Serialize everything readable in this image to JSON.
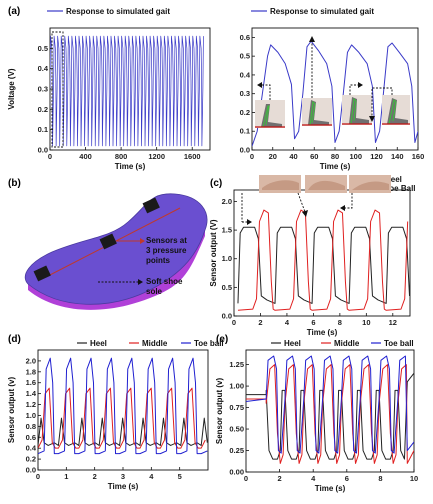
{
  "panel_labels": {
    "a": "(a)",
    "b": "(b)",
    "c": "(c)",
    "d": "(d)",
    "e": "(e)"
  },
  "insole": {
    "sensors_label_lines": [
      "Sensors at",
      "3 pressure",
      "points"
    ],
    "sole_label_lines": [
      "Soft shoe",
      "sole"
    ],
    "colors": {
      "top": "#6a4fd0",
      "side": "#b040d8",
      "sensor": "#1a1a1a",
      "line": "#c0392b"
    }
  },
  "chart_data": [
    {
      "id": "a1",
      "type": "line",
      "xlabel": "Time (s)",
      "ylabel": "Voltage (V)",
      "xlim": [
        0,
        1800
      ],
      "ylim": [
        0,
        0.6
      ],
      "xticks": [
        0,
        400,
        800,
        1200,
        1600
      ],
      "yticks": [
        0.0,
        0.1,
        0.2,
        0.3,
        0.4,
        0.5
      ],
      "series": [
        {
          "name": "Response to simulated gait",
          "color": "#3a3ac8",
          "period": 40,
          "x_start": 0,
          "x_end": 1730,
          "shape": [
            [
              0,
              0.3
            ],
            [
              0.15,
              0.56
            ],
            [
              0.5,
              0.5
            ],
            [
              0.65,
              0.34
            ],
            [
              0.72,
              0.02
            ],
            [
              0.8,
              0.1
            ],
            [
              1,
              0.3
            ]
          ]
        }
      ]
    },
    {
      "id": "a2",
      "type": "line",
      "xlabel": "Time (s)",
      "ylabel": "",
      "xlim": [
        0,
        160
      ],
      "ylim": [
        0,
        0.65
      ],
      "xticks": [
        0,
        20,
        40,
        60,
        80,
        100,
        120,
        140,
        160
      ],
      "yticks": [
        0.0,
        0.1,
        0.2,
        0.3,
        0.4,
        0.5,
        0.6
      ],
      "series": [
        {
          "name": "Response to simulated gait",
          "color": "#3a3ac8",
          "points": [
            [
              0,
              0.02
            ],
            [
              5,
              0.1
            ],
            [
              10,
              0.3
            ],
            [
              15,
              0.5
            ],
            [
              18,
              0.56
            ],
            [
              25,
              0.52
            ],
            [
              32,
              0.46
            ],
            [
              38,
              0.35
            ],
            [
              41,
              0.06
            ],
            [
              45,
              0.1
            ],
            [
              49,
              0.3
            ],
            [
              53,
              0.55
            ],
            [
              57,
              0.58
            ],
            [
              64,
              0.53
            ],
            [
              72,
              0.46
            ],
            [
              77,
              0.34
            ],
            [
              80,
              0.04
            ],
            [
              84,
              0.1
            ],
            [
              88,
              0.3
            ],
            [
              92,
              0.52
            ],
            [
              96,
              0.56
            ],
            [
              103,
              0.52
            ],
            [
              111,
              0.46
            ],
            [
              116,
              0.34
            ],
            [
              119,
              0.04
            ],
            [
              123,
              0.1
            ],
            [
              127,
              0.32
            ],
            [
              131,
              0.55
            ],
            [
              135,
              0.57
            ],
            [
              142,
              0.52
            ],
            [
              150,
              0.46
            ],
            [
              154,
              0.34
            ],
            [
              157,
              0.04
            ],
            [
              160,
              0.1
            ]
          ]
        }
      ]
    },
    {
      "id": "c",
      "type": "line",
      "xlabel": "Time (s)",
      "ylabel": "Sensor output (V)",
      "xlim": [
        0,
        13.3
      ],
      "ylim": [
        0,
        2.2
      ],
      "xticks": [
        0,
        2,
        4,
        6,
        8,
        10,
        12
      ],
      "yticks": [
        0.0,
        0.5,
        1.0,
        1.5,
        2.0
      ],
      "series": [
        {
          "name": "Heel",
          "color": "#222222",
          "period": 2.8,
          "x_start": 0.3,
          "x_end": 13.3,
          "shape": [
            [
              0,
              0.22
            ],
            [
              0.06,
              1.45
            ],
            [
              0.15,
              1.55
            ],
            [
              0.45,
              1.55
            ],
            [
              0.55,
              1.35
            ],
            [
              0.63,
              0.35
            ],
            [
              0.78,
              0.28
            ],
            [
              1,
              0.22
            ]
          ]
        },
        {
          "name": "Toe Ball",
          "color": "#e02020",
          "period": 2.8,
          "x_start": 0.3,
          "x_end": 13.3,
          "shape": [
            [
              0,
              0.1
            ],
            [
              0.4,
              0.12
            ],
            [
              0.5,
              0.3
            ],
            [
              0.58,
              1.65
            ],
            [
              0.7,
              1.85
            ],
            [
              0.82,
              1.8
            ],
            [
              0.9,
              0.6
            ],
            [
              0.95,
              0.12
            ],
            [
              1,
              0.1
            ]
          ]
        }
      ]
    },
    {
      "id": "d",
      "type": "line",
      "xlabel": "Time (s)",
      "ylabel": "Sensor output (v)",
      "xlim": [
        0,
        6
      ],
      "ylim": [
        0,
        2.2
      ],
      "xticks": [
        0,
        1,
        2,
        3,
        4,
        5
      ],
      "yticks": [
        0.0,
        0.2,
        0.4,
        0.6,
        0.8,
        1.0,
        1.2,
        1.4,
        1.6,
        1.8,
        2.0
      ],
      "series": [
        {
          "name": "Heel",
          "color": "#222222",
          "period": 0.72,
          "x_start": 0,
          "x_end": 6,
          "shape": [
            [
              0,
              0.45
            ],
            [
              0.15,
              0.95
            ],
            [
              0.3,
              0.5
            ],
            [
              0.5,
              0.45
            ],
            [
              0.8,
              0.5
            ],
            [
              1,
              0.45
            ]
          ]
        },
        {
          "name": "Middle",
          "color": "#e02020",
          "period": 0.72,
          "x_start": 0,
          "x_end": 6,
          "shape": [
            [
              0,
              0.4
            ],
            [
              0.2,
              0.55
            ],
            [
              0.35,
              1.4
            ],
            [
              0.55,
              1.5
            ],
            [
              0.7,
              0.5
            ],
            [
              0.85,
              0.4
            ],
            [
              1,
              0.4
            ]
          ]
        },
        {
          "name": "Toe ball",
          "color": "#2020d0",
          "period": 0.72,
          "x_start": 0,
          "x_end": 6,
          "shape": [
            [
              0,
              0.3
            ],
            [
              0.3,
              0.35
            ],
            [
              0.4,
              1.85
            ],
            [
              0.6,
              2.05
            ],
            [
              0.72,
              1.6
            ],
            [
              0.8,
              0.3
            ],
            [
              1,
              0.3
            ]
          ]
        }
      ]
    },
    {
      "id": "e",
      "type": "line",
      "xlabel": "Time (s)",
      "ylabel": "Sensor output (v)",
      "xlim": [
        0,
        10
      ],
      "ylim": [
        0,
        1.42
      ],
      "xticks": [
        0,
        2,
        4,
        6,
        8,
        10
      ],
      "yticks": [
        0.0,
        0.25,
        0.5,
        0.75,
        1.0,
        1.25
      ],
      "series": [
        {
          "name": "Heel",
          "color": "#222222",
          "period": 1.12,
          "x_start": 1.2,
          "x_end": 9.6,
          "pre": [
            [
              0,
              0.9
            ],
            [
              1.2,
              0.9
            ]
          ],
          "post": [
            [
              9.6,
              1.05
            ],
            [
              10,
              1.15
            ]
          ],
          "shape": [
            [
              0,
              0.95
            ],
            [
              0.15,
              0.25
            ],
            [
              0.35,
              0.15
            ],
            [
              0.6,
              0.15
            ],
            [
              0.75,
              0.25
            ],
            [
              0.85,
              0.95
            ],
            [
              1,
              0.95
            ]
          ]
        },
        {
          "name": "Middle",
          "color": "#e02020",
          "period": 1.12,
          "x_start": 1.2,
          "x_end": 9.6,
          "pre": [
            [
              0,
              0.85
            ],
            [
              1.2,
              0.85
            ]
          ],
          "post": [
            [
              9.6,
              0.1
            ],
            [
              10,
              0.25
            ]
          ],
          "shape": [
            [
              0,
              0.8
            ],
            [
              0.2,
              1.2
            ],
            [
              0.45,
              1.25
            ],
            [
              0.6,
              0.45
            ],
            [
              0.75,
              0.1
            ],
            [
              0.9,
              0.2
            ],
            [
              1,
              0.8
            ]
          ]
        },
        {
          "name": "Toe ball",
          "color": "#2020d0",
          "period": 1.12,
          "x_start": 1.2,
          "x_end": 9.6,
          "pre": [
            [
              0,
              0.82
            ],
            [
              1.2,
              0.85
            ]
          ],
          "post": [
            [
              9.6,
              0.25
            ],
            [
              10,
              0.35
            ]
          ],
          "shape": [
            [
              0,
              0.85
            ],
            [
              0.1,
              1.3
            ],
            [
              0.4,
              1.35
            ],
            [
              0.55,
              1.2
            ],
            [
              0.65,
              0.25
            ],
            [
              0.8,
              0.22
            ],
            [
              1,
              0.85
            ]
          ]
        }
      ]
    }
  ]
}
